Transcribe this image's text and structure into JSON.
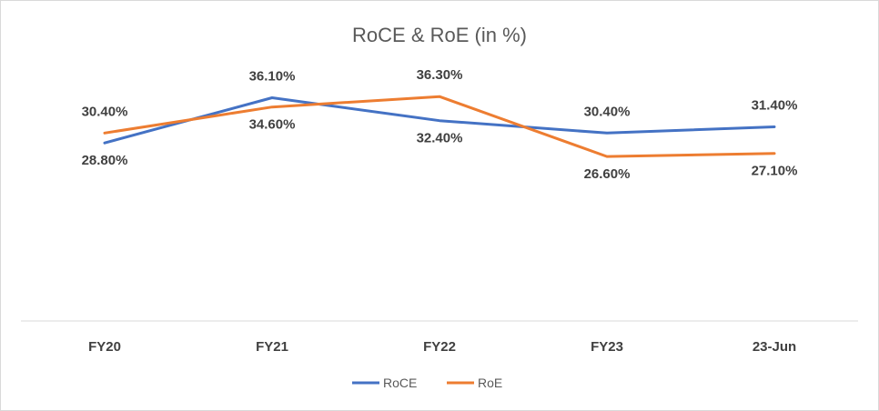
{
  "chart_data": {
    "type": "line",
    "title": "RoCE & RoE (in %)",
    "categories": [
      "FY20",
      "FY21",
      "FY22",
      "FY23",
      "23-Jun"
    ],
    "series": [
      {
        "name": "RoCE",
        "color": "#4472C4",
        "values": [
          28.8,
          36.1,
          32.4,
          30.4,
          31.4
        ],
        "labels": [
          "28.80%",
          "36.10%",
          "32.40%",
          "30.40%",
          "31.40%"
        ]
      },
      {
        "name": "RoE",
        "color": "#ED7D31",
        "values": [
          30.4,
          34.6,
          36.3,
          26.6,
          27.1
        ],
        "labels": [
          "30.40%",
          "34.60%",
          "36.30%",
          "26.60%",
          "27.10%"
        ]
      }
    ],
    "xlabel": "",
    "ylabel": "",
    "ylim": [
      0,
      40
    ],
    "grid": false,
    "legend": "bottom-center"
  }
}
